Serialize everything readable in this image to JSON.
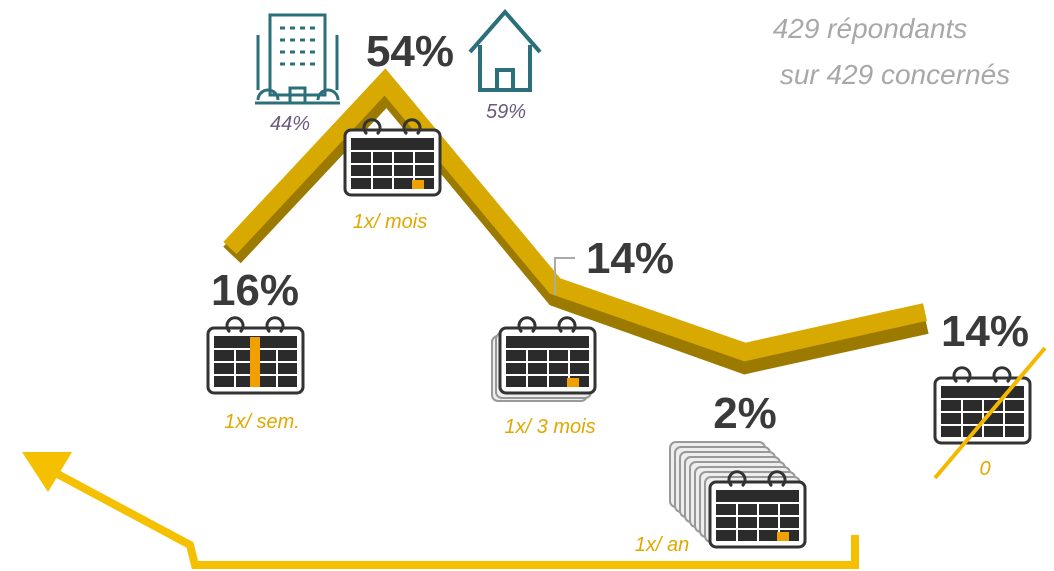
{
  "note": [
    "429 répondants",
    "sur 429 concernés"
  ],
  "items": [
    {
      "value": "16%",
      "label": "1x/ sem."
    },
    {
      "value": "54%",
      "label": "1x/ mois"
    },
    {
      "value": "14%",
      "label": "1x/ 3 mois"
    },
    {
      "value": "2%",
      "label": "1x/ an"
    },
    {
      "value": "14%",
      "label": "0"
    }
  ],
  "housing": [
    {
      "value": "44%"
    },
    {
      "value": "59%"
    }
  ]
}
